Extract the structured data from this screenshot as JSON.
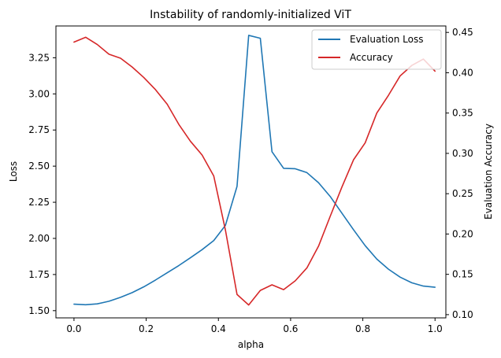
{
  "chart_data": {
    "type": "line",
    "title": "Instability of randomly-initialized ViT",
    "xlabel": "alpha",
    "ylabel_left": "Loss",
    "ylabel_right": "Evaluation Accuracy",
    "xlim": [
      -0.05,
      1.03
    ],
    "ylim_left": [
      1.45,
      3.47
    ],
    "ylim_right": [
      0.096,
      0.458
    ],
    "x_ticks": [
      0.0,
      0.2,
      0.4,
      0.6,
      0.8,
      1.0
    ],
    "x_tick_labels": [
      "0.0",
      "0.2",
      "0.4",
      "0.6",
      "0.8",
      "1.0"
    ],
    "y_left_ticks": [
      1.5,
      1.75,
      2.0,
      2.25,
      2.5,
      2.75,
      3.0,
      3.25
    ],
    "y_left_tick_labels": [
      "1.50",
      "1.75",
      "2.00",
      "2.25",
      "2.50",
      "2.75",
      "3.00",
      "3.25"
    ],
    "y_right_ticks": [
      0.1,
      0.15,
      0.2,
      0.25,
      0.3,
      0.35,
      0.4,
      0.45
    ],
    "y_right_tick_labels": [
      "0.10",
      "0.15",
      "0.20",
      "0.25",
      "0.30",
      "0.35",
      "0.40",
      "0.45"
    ],
    "grid": false,
    "legend_position": "top-right",
    "x": [
      0.0,
      0.0323,
      0.0645,
      0.0968,
      0.129,
      0.1613,
      0.1935,
      0.2258,
      0.2581,
      0.2903,
      0.3226,
      0.3548,
      0.3871,
      0.4194,
      0.4516,
      0.4839,
      0.5161,
      0.5484,
      0.5806,
      0.6129,
      0.6452,
      0.6774,
      0.7097,
      0.7419,
      0.7742,
      0.8065,
      0.8387,
      0.871,
      0.9032,
      0.9355,
      0.9677,
      1.0
    ],
    "series": [
      {
        "name": "Evaluation Loss",
        "axis": "left",
        "color": "#1f77b4",
        "values": [
          1.545,
          1.541,
          1.547,
          1.565,
          1.592,
          1.625,
          1.665,
          1.712,
          1.762,
          1.812,
          1.866,
          1.922,
          1.985,
          2.09,
          2.36,
          3.405,
          3.385,
          2.6,
          2.485,
          2.482,
          2.455,
          2.385,
          2.29,
          2.175,
          2.06,
          1.95,
          1.857,
          1.787,
          1.732,
          1.693,
          1.67,
          1.662
        ]
      },
      {
        "name": "Accuracy",
        "axis": "right",
        "color": "#d62728",
        "values": [
          0.438,
          0.444,
          0.435,
          0.423,
          0.418,
          0.407,
          0.394,
          0.379,
          0.361,
          0.336,
          0.315,
          0.298,
          0.272,
          0.205,
          0.125,
          0.112,
          0.13,
          0.137,
          0.131,
          0.142,
          0.158,
          0.185,
          0.222,
          0.258,
          0.292,
          0.313,
          0.35,
          0.372,
          0.396,
          0.409,
          0.417,
          0.402
        ]
      }
    ]
  }
}
